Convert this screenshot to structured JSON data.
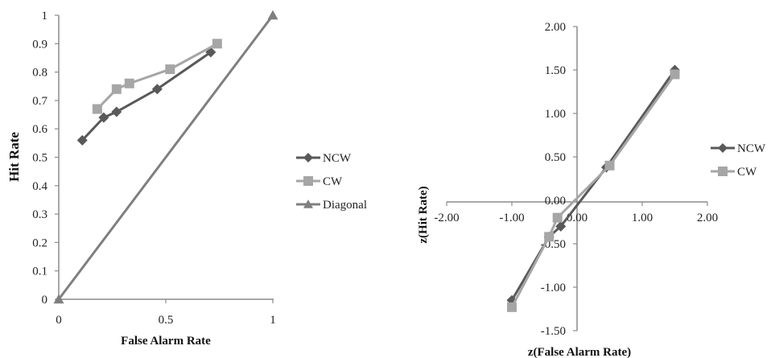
{
  "chart_data": [
    {
      "type": "line",
      "xlabel": "False Alarm Rate",
      "ylabel": "Hit Rate",
      "xlim": [
        0,
        1
      ],
      "ylim": [
        0,
        1
      ],
      "x_ticks": [
        "0",
        "0.5",
        "1"
      ],
      "x_tick_values": [
        0,
        0.5,
        1
      ],
      "y_ticks": [
        "0",
        "0.1",
        "0.2",
        "0.3",
        "0.4",
        "0.5",
        "0.6",
        "0.7",
        "0.8",
        "0.9",
        "1"
      ],
      "y_tick_values": [
        0,
        0.1,
        0.2,
        0.3,
        0.4,
        0.5,
        0.6,
        0.7,
        0.8,
        0.9,
        1
      ],
      "grid": false,
      "legend_position": "right",
      "series": [
        {
          "name": "NCW",
          "marker": "diamond",
          "color": "#595959",
          "x": [
            0.11,
            0.21,
            0.27,
            0.46,
            0.71
          ],
          "y": [
            0.56,
            0.64,
            0.66,
            0.74,
            0.87
          ]
        },
        {
          "name": "CW",
          "marker": "square",
          "color": "#a6a6a6",
          "x": [
            0.18,
            0.27,
            0.33,
            0.52,
            0.74
          ],
          "y": [
            0.67,
            0.74,
            0.76,
            0.81,
            0.9
          ]
        },
        {
          "name": "Diagonal",
          "marker": "triangle",
          "color": "#7f7f7f",
          "x": [
            0,
            1
          ],
          "y": [
            0,
            1
          ]
        }
      ]
    },
    {
      "type": "line",
      "xlabel": "z(False Alarm Rate)",
      "ylabel": "z(Hit Rate)",
      "xlim": [
        -2,
        2
      ],
      "ylim": [
        -1.5,
        2
      ],
      "x_ticks": [
        "-2.00",
        "-1.00",
        "0.00",
        "1.00",
        "2.00"
      ],
      "x_tick_values": [
        -2,
        -1,
        0,
        1,
        2
      ],
      "y_ticks": [
        "-1.50",
        "-1.00",
        "-0.50",
        "0.00",
        "0.50",
        "1.00",
        "1.50",
        "2.00"
      ],
      "y_tick_values": [
        -1.5,
        -1,
        -0.5,
        0,
        0.5,
        1,
        1.5,
        2
      ],
      "grid": false,
      "legend_position": "right",
      "series": [
        {
          "name": "NCW",
          "marker": "diamond",
          "color": "#595959",
          "x": [
            -1.0,
            -0.43,
            -0.25,
            0.45,
            1.5
          ],
          "y": [
            -1.15,
            -0.42,
            -0.3,
            0.38,
            1.5
          ]
        },
        {
          "name": "CW",
          "marker": "square",
          "color": "#a6a6a6",
          "x": [
            -1.0,
            -0.43,
            -0.3,
            0.5,
            1.5
          ],
          "y": [
            -1.23,
            -0.42,
            -0.2,
            0.4,
            1.45
          ]
        }
      ]
    }
  ]
}
